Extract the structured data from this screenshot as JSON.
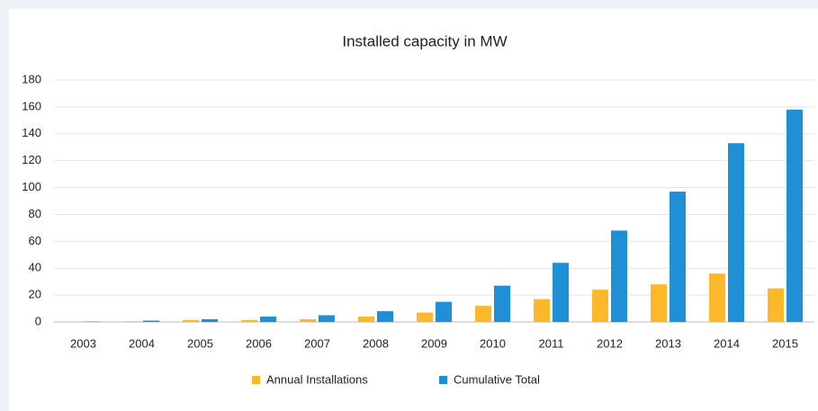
{
  "chart_data": {
    "type": "bar",
    "title": "Installed capacity in MW",
    "categories": [
      "2003",
      "2004",
      "2005",
      "2006",
      "2007",
      "2008",
      "2009",
      "2010",
      "2011",
      "2012",
      "2013",
      "2014",
      "2015"
    ],
    "series": [
      {
        "name": "Annual Installations",
        "color": "#fbb829",
        "values": [
          0.2,
          0.5,
          1.5,
          1.5,
          2,
          4,
          7,
          12,
          17,
          24,
          28,
          36,
          25
        ]
      },
      {
        "name": "Cumulative Total",
        "color": "#1f8fd6",
        "values": [
          0.3,
          1,
          2,
          4,
          5,
          8,
          15,
          27,
          44,
          68,
          97,
          133,
          158
        ]
      }
    ],
    "ylim": [
      0,
      180
    ],
    "yticks": [
      0,
      20,
      40,
      60,
      80,
      100,
      120,
      140,
      160,
      180
    ],
    "grid": true,
    "legend": "bottom"
  }
}
